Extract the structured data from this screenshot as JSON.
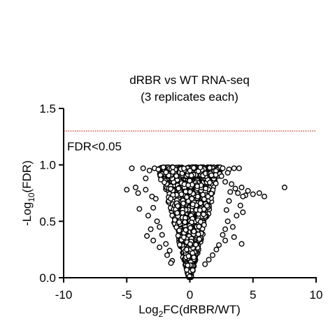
{
  "chart_data": {
    "type": "scatter",
    "title": "dRBR vs WT RNA-seq",
    "subtitle": "(3 replicates each)",
    "xlabel": {
      "prefix": "Log",
      "subscript": "2",
      "suffix": "FC(dRBR/WT)"
    },
    "ylabel": {
      "prefix": "-Log",
      "subscript": "10",
      "suffix": "(FDR)"
    },
    "xlim": [
      -10,
      10
    ],
    "ylim": [
      0,
      1.5
    ],
    "xticks": [
      -10,
      -5,
      0,
      5,
      10
    ],
    "xtick_labels": [
      "-10",
      "-5",
      "0",
      "5",
      "10"
    ],
    "yticks": [
      0,
      0.5,
      1.0,
      1.5
    ],
    "ytick_labels": [
      "0.0",
      "0.5",
      "1.0",
      "1.5"
    ],
    "grid": false,
    "marker": "open-circle",
    "marker_color": "#000000",
    "threshold": {
      "y": 1.3,
      "label": "FDR<0.05",
      "color": "#c0392b",
      "style": "dotted"
    },
    "points": [
      [
        -4.6,
        0.97
      ],
      [
        -3.7,
        0.97
      ],
      [
        -3.2,
        0.95
      ],
      [
        -2.8,
        0.97
      ],
      [
        -2.5,
        0.96
      ],
      [
        -5.0,
        0.78
      ],
      [
        -4.3,
        0.8
      ],
      [
        -4.1,
        0.75
      ],
      [
        -3.5,
        0.78
      ],
      [
        -3.0,
        0.72
      ],
      [
        -2.7,
        0.7
      ],
      [
        -2.9,
        0.62
      ],
      [
        -4.0,
        0.61
      ],
      [
        -3.3,
        0.55
      ],
      [
        -2.6,
        0.5
      ],
      [
        -3.1,
        0.43
      ],
      [
        -2.4,
        0.45
      ],
      [
        -3.4,
        0.37
      ],
      [
        -2.9,
        0.33
      ],
      [
        -2.2,
        0.38
      ],
      [
        -1.9,
        0.3
      ],
      [
        -1.6,
        0.24
      ],
      [
        -2.4,
        0.27
      ],
      [
        -1.4,
        0.15
      ],
      [
        -1.5,
        0.13
      ],
      [
        -1.8,
        0.2
      ],
      [
        -3.5,
        0.88
      ],
      [
        -2.3,
        0.87
      ],
      [
        2.6,
        0.97
      ],
      [
        3.1,
        0.96
      ],
      [
        3.5,
        0.97
      ],
      [
        3.9,
        0.97
      ],
      [
        3.0,
        0.93
      ],
      [
        2.8,
        0.85
      ],
      [
        3.3,
        0.83
      ],
      [
        3.6,
        0.79
      ],
      [
        4.1,
        0.8
      ],
      [
        4.4,
        0.73
      ],
      [
        3.8,
        0.75
      ],
      [
        3.2,
        0.76
      ],
      [
        4.2,
        0.72
      ],
      [
        4.6,
        0.77
      ],
      [
        5.0,
        0.74
      ],
      [
        5.5,
        0.75
      ],
      [
        5.9,
        0.72
      ],
      [
        7.5,
        0.8
      ],
      [
        3.1,
        0.68
      ],
      [
        4.0,
        0.64
      ],
      [
        2.9,
        0.6
      ],
      [
        4.2,
        0.58
      ],
      [
        3.7,
        0.55
      ],
      [
        3.0,
        0.5
      ],
      [
        2.8,
        0.43
      ],
      [
        3.4,
        0.45
      ],
      [
        2.6,
        0.38
      ],
      [
        2.8,
        0.33
      ],
      [
        4.1,
        0.3
      ],
      [
        2.1,
        0.25
      ],
      [
        1.5,
        0.16
      ],
      [
        1.2,
        0.12
      ],
      [
        1.8,
        0.2
      ],
      [
        2.3,
        0.29
      ],
      [
        3.5,
        0.36
      ],
      [
        2.5,
        0.9
      ]
    ]
  }
}
